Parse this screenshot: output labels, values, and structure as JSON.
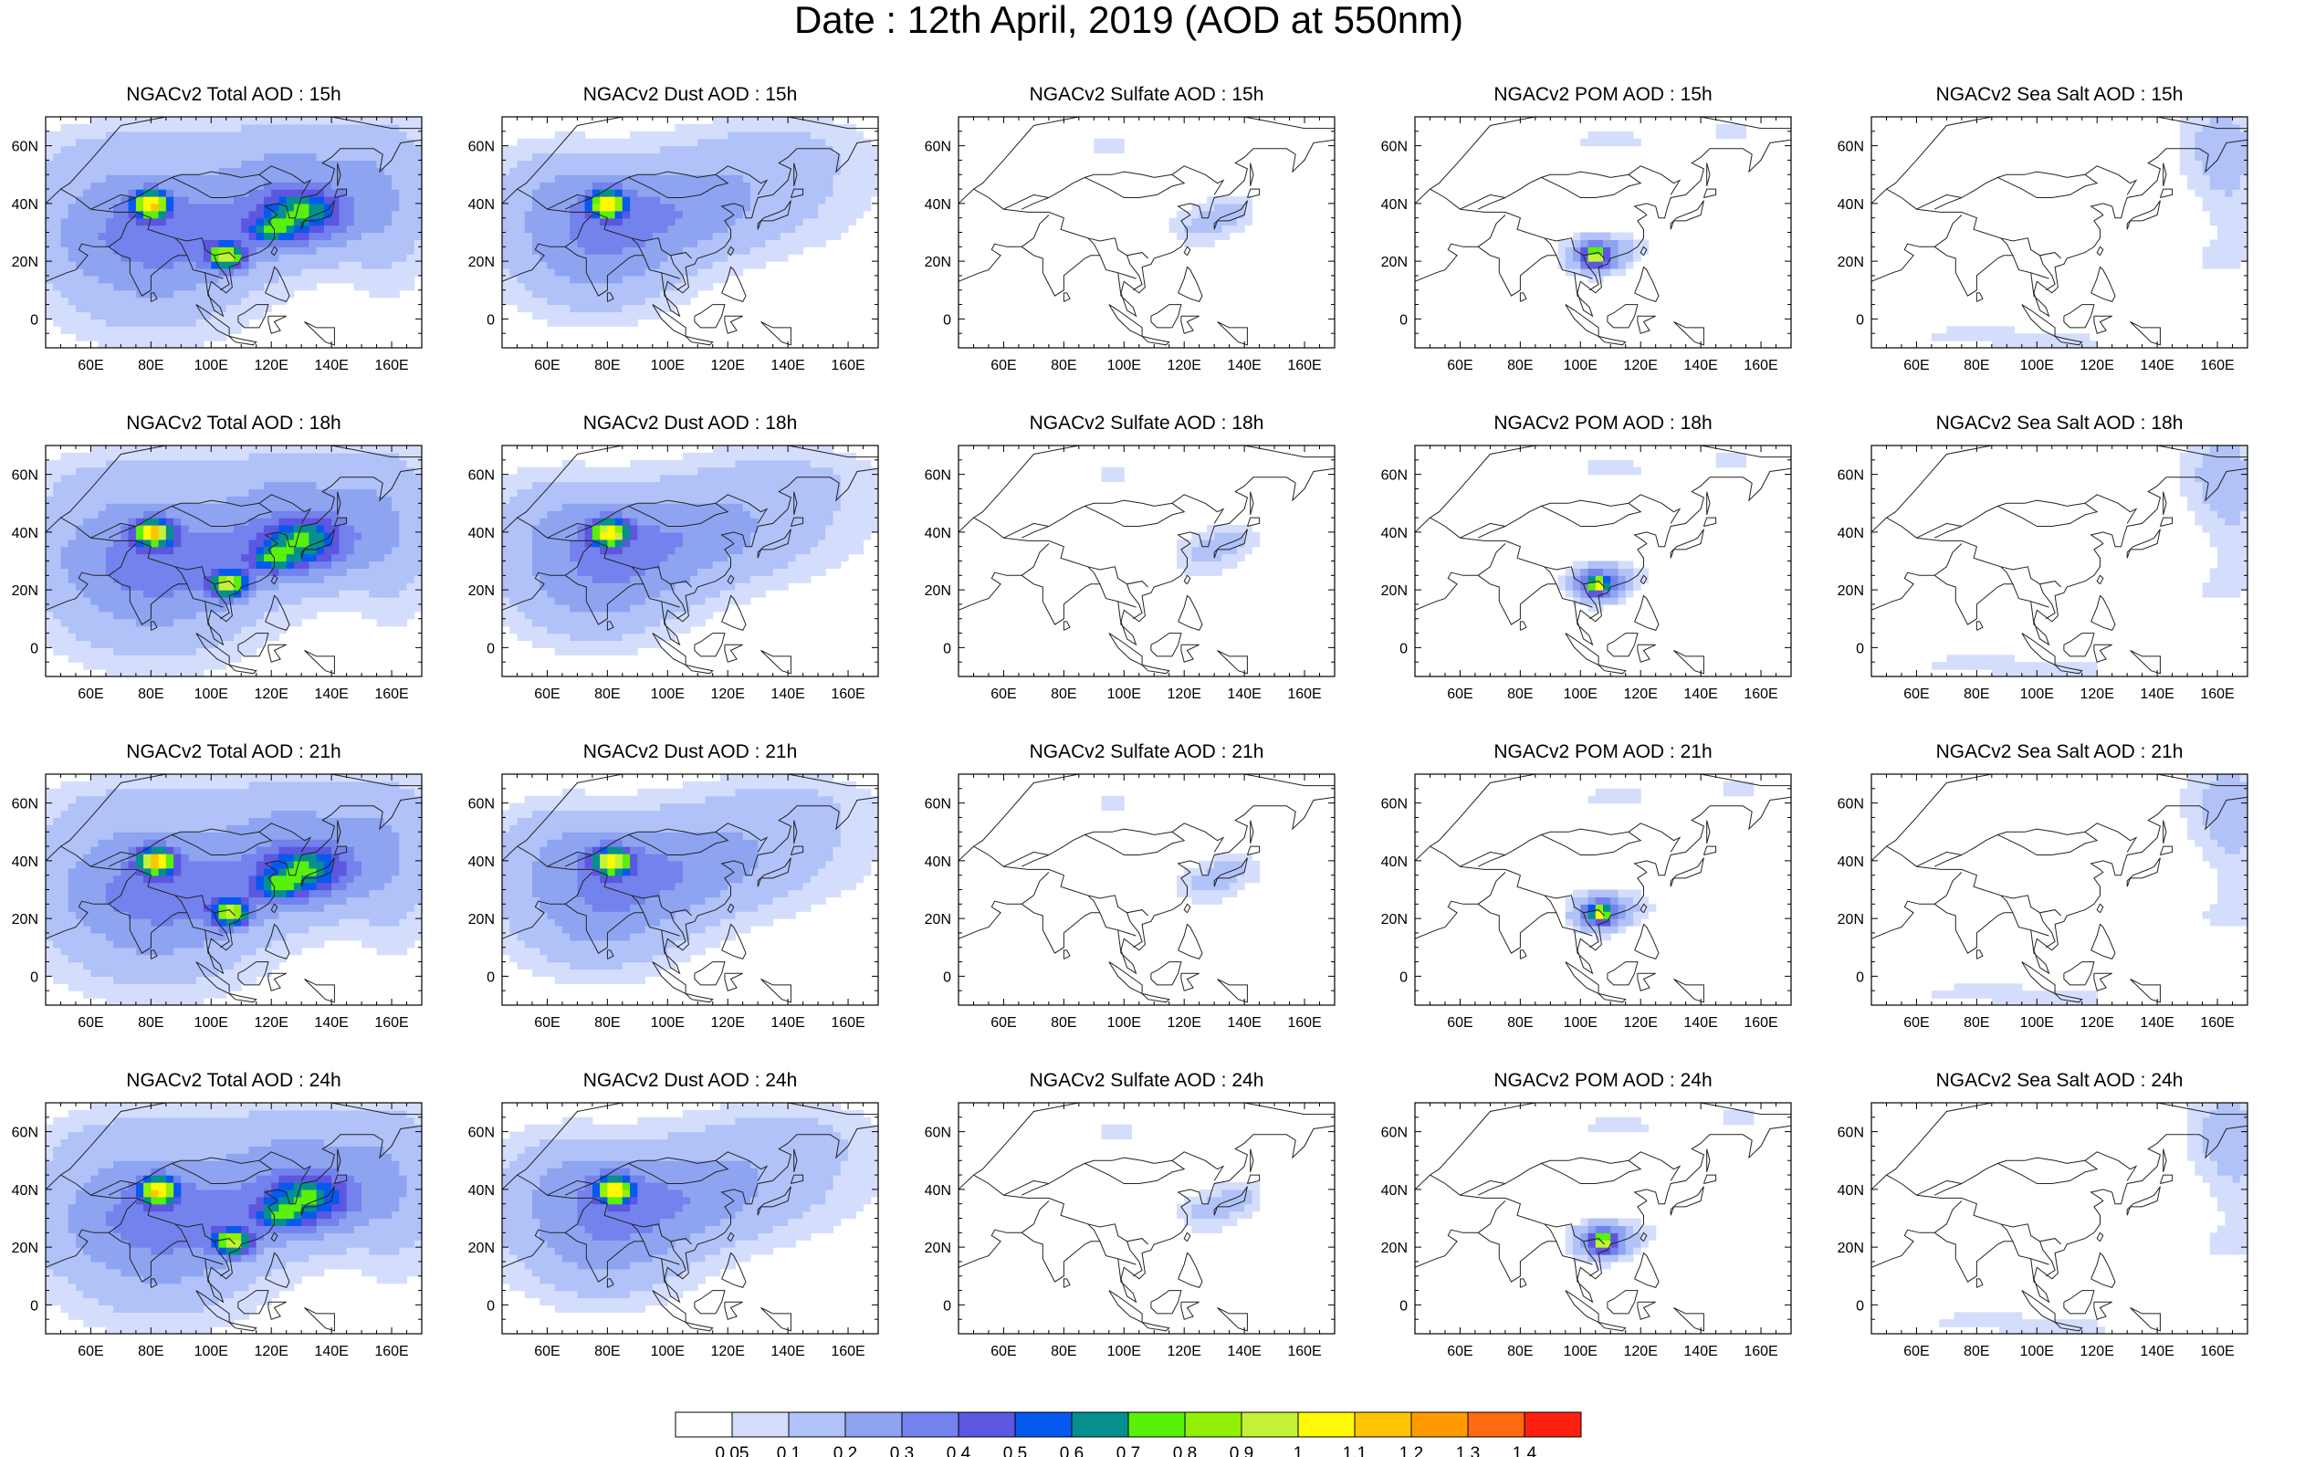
{
  "title": "Date : 12th April, 2019 (AOD at 550nm)",
  "map": {
    "lon_range": [
      45,
      170
    ],
    "lat_range": [
      -10,
      70
    ],
    "lon_tick_labels": [
      "60E",
      "80E",
      "100E",
      "120E",
      "140E",
      "160E"
    ],
    "lon_ticks": [
      60,
      80,
      100,
      120,
      140,
      160
    ],
    "lat_tick_labels": [
      "60N",
      "40N",
      "20N",
      "0"
    ],
    "lat_ticks": [
      60,
      40,
      20,
      0
    ]
  },
  "species": [
    {
      "key": "total",
      "title_name": "Total AOD"
    },
    {
      "key": "dust",
      "title_name": "Dust AOD"
    },
    {
      "key": "sulfate",
      "title_name": "Sulfate AOD"
    },
    {
      "key": "pom",
      "title_name": "POM AOD"
    },
    {
      "key": "seasalt",
      "title_name": "Sea Salt AOD"
    }
  ],
  "panels": [
    {
      "title": "NGACv2 Total AOD : 15h",
      "species": "total",
      "hour": 15
    },
    {
      "title": "NGACv2 Dust AOD : 15h",
      "species": "dust",
      "hour": 15
    },
    {
      "title": "NGACv2 Sulfate AOD : 15h",
      "species": "sulfate",
      "hour": 15
    },
    {
      "title": "NGACv2 POM AOD : 15h",
      "species": "pom",
      "hour": 15
    },
    {
      "title": "NGACv2 Sea Salt AOD : 15h",
      "species": "seasalt",
      "hour": 15
    },
    {
      "title": "NGACv2 Total AOD : 18h",
      "species": "total",
      "hour": 18
    },
    {
      "title": "NGACv2 Dust AOD : 18h",
      "species": "dust",
      "hour": 18
    },
    {
      "title": "NGACv2 Sulfate AOD : 18h",
      "species": "sulfate",
      "hour": 18
    },
    {
      "title": "NGACv2 POM AOD : 18h",
      "species": "pom",
      "hour": 18
    },
    {
      "title": "NGACv2 Sea Salt AOD : 18h",
      "species": "seasalt",
      "hour": 18
    },
    {
      "title": "NGACv2 Total AOD : 21h",
      "species": "total",
      "hour": 21
    },
    {
      "title": "NGACv2 Dust AOD : 21h",
      "species": "dust",
      "hour": 21
    },
    {
      "title": "NGACv2 Sulfate AOD : 21h",
      "species": "sulfate",
      "hour": 21
    },
    {
      "title": "NGACv2 POM AOD : 21h",
      "species": "pom",
      "hour": 21
    },
    {
      "title": "NGACv2 Sea Salt AOD : 21h",
      "species": "seasalt",
      "hour": 21
    },
    {
      "title": "NGACv2 Total AOD : 24h",
      "species": "total",
      "hour": 24
    },
    {
      "title": "NGACv2 Dust AOD : 24h",
      "species": "dust",
      "hour": 24
    },
    {
      "title": "NGACv2 Sulfate AOD : 24h",
      "species": "sulfate",
      "hour": 24
    },
    {
      "title": "NGACv2 POM AOD : 24h",
      "species": "pom",
      "hour": 24
    },
    {
      "title": "NGACv2 Sea Salt  AOD : 24h",
      "species": "seasalt",
      "hour": 24
    }
  ],
  "colorbar": {
    "labels": [
      "0.05",
      "0.1",
      "0.2",
      "0.3",
      "0.4",
      "0.5",
      "0.6",
      "0.7",
      "0.8",
      "0.9",
      "1",
      "1.1",
      "1.2",
      "1.3",
      "1.4"
    ],
    "colors": [
      "#ffffff",
      "#d4defc",
      "#b0c2f8",
      "#8ea4f1",
      "#7382ec",
      "#5c56e0",
      "#0659ee",
      "#05908f",
      "#59f00a",
      "#92f004",
      "#c4f238",
      "#fffa00",
      "#ffc400",
      "#ff9a00",
      "#ff6a10",
      "#ff2010"
    ]
  }
}
